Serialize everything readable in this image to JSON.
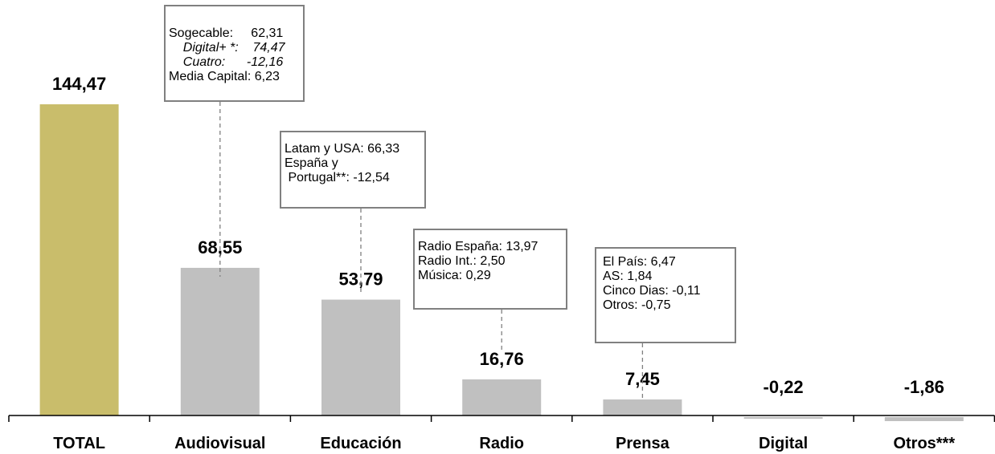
{
  "chart_data": {
    "type": "bar",
    "categories": [
      "TOTAL",
      "Audiovisual",
      "Educación",
      "Radio",
      "Prensa",
      "Digital",
      "Otros***"
    ],
    "values": [
      144.47,
      68.55,
      53.79,
      16.76,
      7.45,
      -0.22,
      -1.86
    ],
    "value_labels": [
      "144,47",
      "68,55",
      "53,79",
      "16,76",
      "7,45",
      "-0,22",
      "-1,86"
    ],
    "colors": [
      "#C9BD6B",
      "#C0C0C0",
      "#C0C0C0",
      "#C0C0C0",
      "#C0C0C0",
      "#C0C0C0",
      "#C0C0C0"
    ],
    "title": "",
    "xlabel": "",
    "ylabel": "",
    "grid": false,
    "legend": "none",
    "annotations": [
      {
        "category": "Audiovisual",
        "lines": [
          {
            "text": "Sogecable:     62,31",
            "italic": false
          },
          {
            "text": "    Digital+ *:    74,47",
            "italic": true
          },
          {
            "text": "    Cuatro:      -12,16",
            "italic": true
          },
          {
            "text": "Media Capital: 6,23",
            "italic": false
          }
        ]
      },
      {
        "category": "Educación",
        "lines": [
          {
            "text": "Latam y USA: 66,33",
            "italic": false
          },
          {
            "text": "España y",
            "italic": false
          },
          {
            "text": " Portugal**: -12,54",
            "italic": false
          }
        ]
      },
      {
        "category": "Radio",
        "lines": [
          {
            "text": "Radio España: 13,97",
            "italic": false
          },
          {
            "text": "Radio Int.: 2,50",
            "italic": false
          },
          {
            "text": "Música: 0,29",
            "italic": false
          }
        ]
      },
      {
        "category": "Prensa",
        "lines": [
          {
            "text": "El País: 6,47",
            "italic": false
          },
          {
            "text": "AS: 1,84",
            "italic": false
          },
          {
            "text": "Cinco Dias: -0,11",
            "italic": false
          },
          {
            "text": "Otros: -0,75",
            "italic": false
          }
        ]
      }
    ]
  }
}
